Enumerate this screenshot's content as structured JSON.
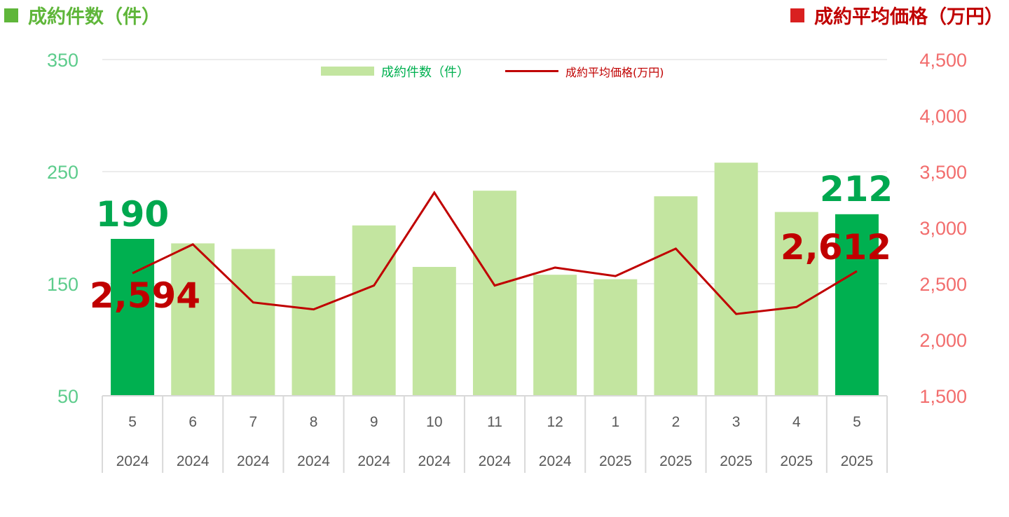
{
  "header": {
    "left_title": "成約件数（件）",
    "right_title": "成約平均価格（万円）"
  },
  "colors": {
    "bar_light": "#c3e5a0",
    "bar_highlight": "#00b050",
    "line": "#c00000",
    "left_axis": "#5dcc8c",
    "right_axis": "#f26d6d",
    "grid": "#d9d9d9"
  },
  "chart_data": {
    "type": "bar+line",
    "categories": [
      {
        "month": "5",
        "year": "2024"
      },
      {
        "month": "6",
        "year": "2024"
      },
      {
        "month": "7",
        "year": "2024"
      },
      {
        "month": "8",
        "year": "2024"
      },
      {
        "month": "9",
        "year": "2024"
      },
      {
        "month": "10",
        "year": "2024"
      },
      {
        "month": "11",
        "year": "2024"
      },
      {
        "month": "12",
        "year": "2024"
      },
      {
        "month": "1",
        "year": "2025"
      },
      {
        "month": "2",
        "year": "2025"
      },
      {
        "month": "3",
        "year": "2025"
      },
      {
        "month": "4",
        "year": "2025"
      },
      {
        "month": "5",
        "year": "2025"
      }
    ],
    "series": [
      {
        "name": "成約件数（件）",
        "type": "bar",
        "axis": "left",
        "values": [
          190,
          186,
          181,
          157,
          202,
          165,
          233,
          158,
          154,
          228,
          258,
          214,
          212
        ],
        "highlight_indices": [
          0,
          12
        ]
      },
      {
        "name": "成約平均価格(万円)",
        "type": "line",
        "axis": "right",
        "values": [
          2594,
          2851,
          2333,
          2271,
          2484,
          3313,
          2484,
          2644,
          2568,
          2813,
          2230,
          2292,
          2612
        ]
      }
    ],
    "left_axis": {
      "min": 50,
      "max": 350,
      "ticks": [
        "350",
        "250",
        "150",
        "50"
      ]
    },
    "right_axis": {
      "min": 1500,
      "max": 4500,
      "ticks": [
        "4,500",
        "4,000",
        "3,500",
        "3,000",
        "2,500",
        "2,000",
        "1,500"
      ]
    },
    "legend_position": "top-center",
    "callouts": {
      "first_count": "190",
      "last_count": "212",
      "first_price": "2,594",
      "last_price": "2,612"
    }
  }
}
